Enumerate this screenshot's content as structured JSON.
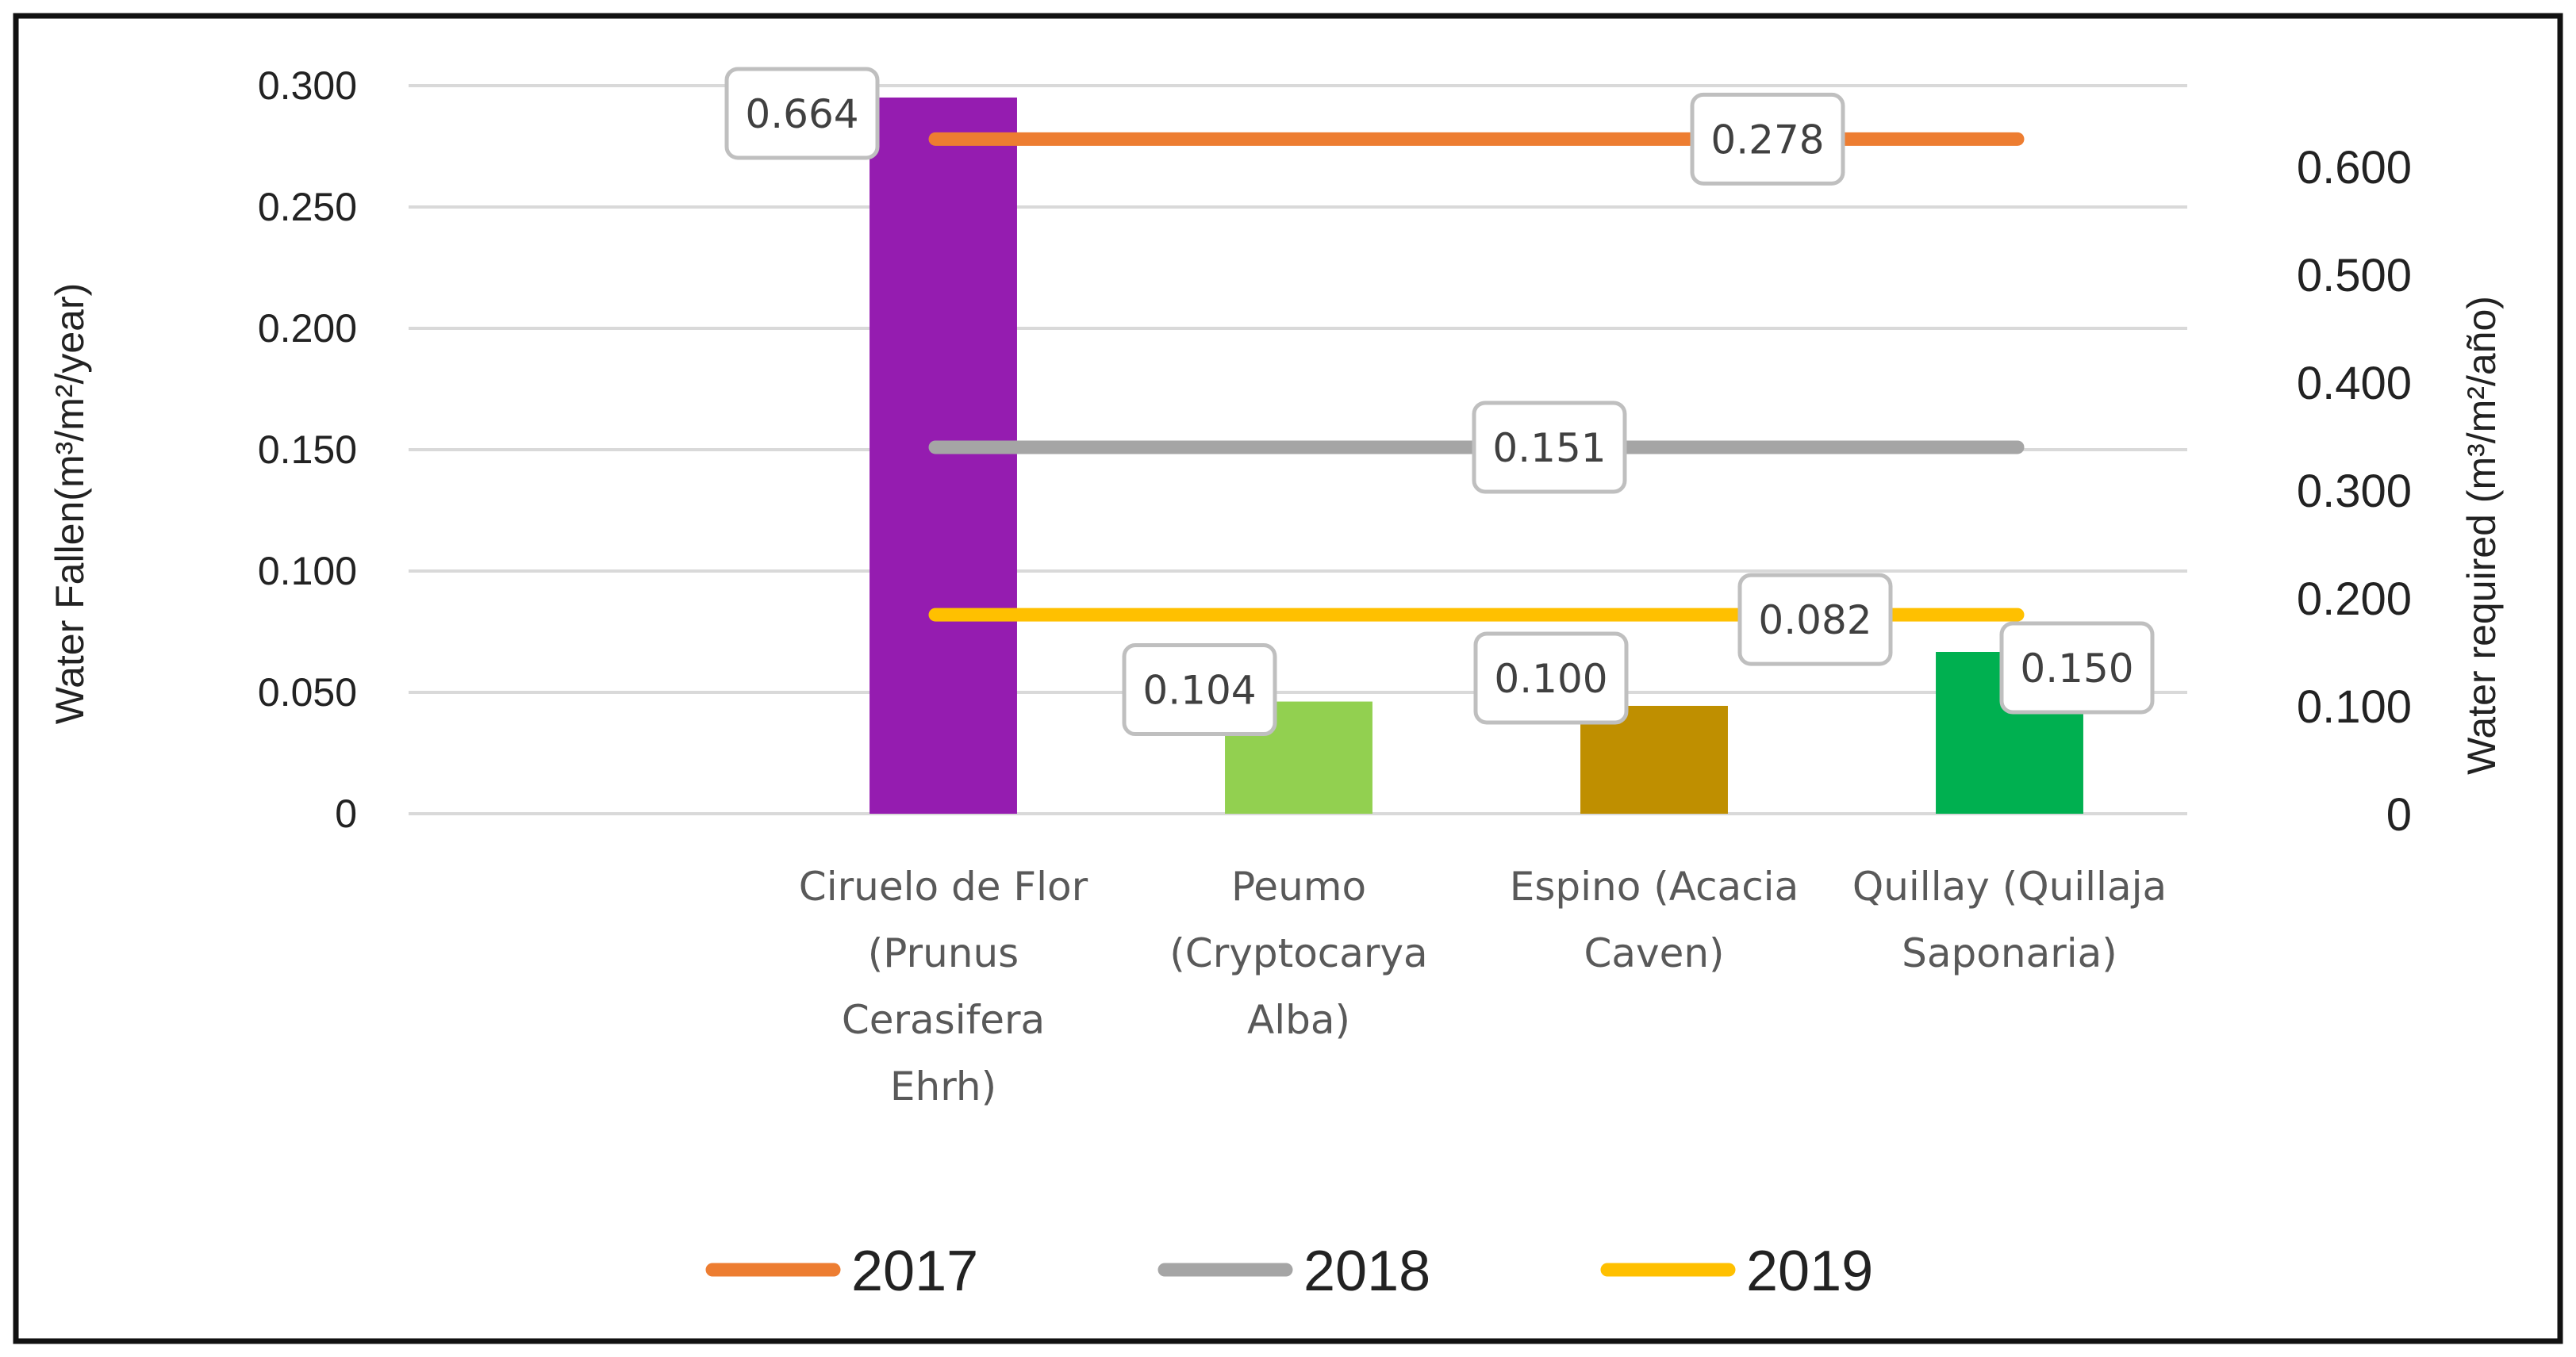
{
  "chart_data": {
    "type": "bar",
    "title": "",
    "categories": [
      [
        "Ciruelo de Flor",
        "(Prunus",
        "Cerasifera",
        "Ehrh)"
      ],
      [
        "Peumo",
        "(Cryptocarya",
        "Alba)"
      ],
      [
        "Espino (Acacia",
        "Caven)"
      ],
      [
        "Quillay (Quillaja",
        "Saponaria)"
      ]
    ],
    "ylabel": "Water Fallen(m³/m²/year)",
    "y2label": "Water required (m³/m²/año)",
    "ylim": [
      0,
      0.3
    ],
    "y2lim": [
      0,
      0.675
    ],
    "yticks": [
      "0",
      "0.050",
      "0.100",
      "0.150",
      "0.200",
      "0.250",
      "0.300"
    ],
    "y2ticks": [
      "0",
      "0.100",
      "0.200",
      "0.300",
      "0.400",
      "0.500",
      "0.600"
    ],
    "grid": true,
    "legend_position": "bottom",
    "bars": {
      "axis": "right",
      "values": [
        0.664,
        0.104,
        0.1,
        0.15
      ],
      "labels": [
        "0.664",
        "0.104",
        "0.100",
        "0.150"
      ],
      "colors": [
        "#951cb0",
        "#92d050",
        "#bf8f00",
        "#00b050"
      ]
    },
    "series": [
      {
        "name": "2017",
        "color": "#ed7d31",
        "axis": "left",
        "values": [
          0.278,
          0.278,
          0.278,
          0.278
        ],
        "label": "0.278"
      },
      {
        "name": "2018",
        "color": "#a5a5a5",
        "axis": "left",
        "values": [
          0.151,
          0.151,
          0.151,
          0.151
        ],
        "label": "0.151"
      },
      {
        "name": "2019",
        "color": "#ffc000",
        "axis": "left",
        "values": [
          0.082,
          0.082,
          0.082,
          0.082
        ],
        "label": "0.082"
      }
    ]
  }
}
